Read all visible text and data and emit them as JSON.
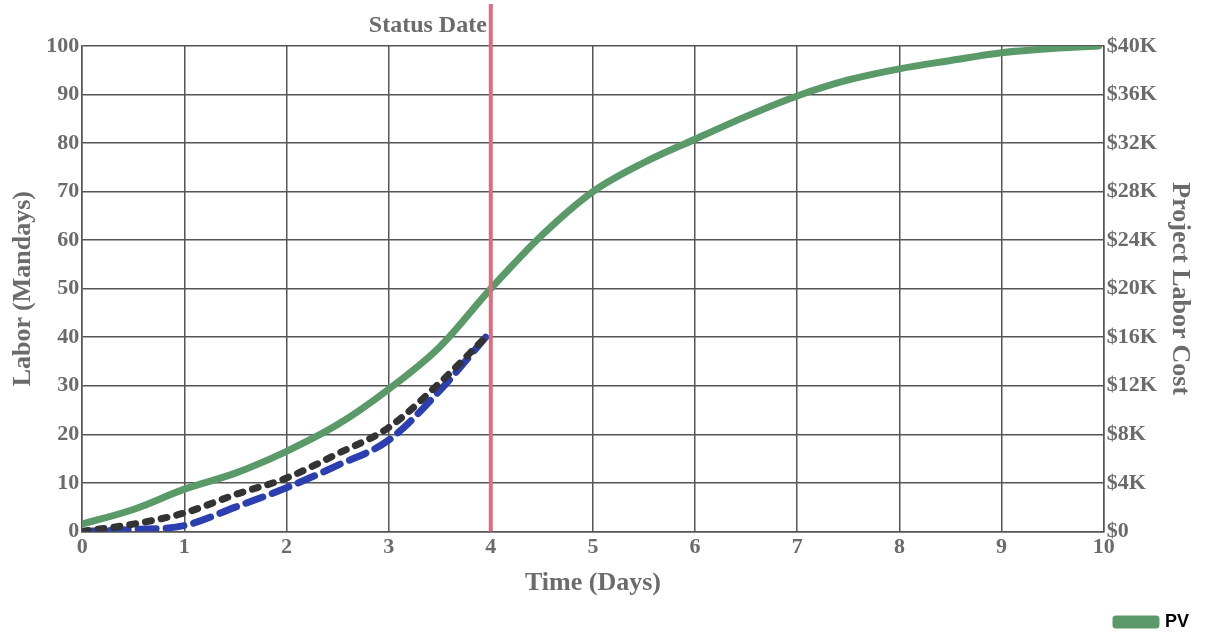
{
  "chart_data": {
    "type": "line",
    "xlabel": "Time (Days)",
    "ylabel": "Labor (Mandays)",
    "y2label": "Project Labor Cost",
    "xlim": [
      0,
      10
    ],
    "xticks": [
      0,
      1,
      2,
      3,
      4,
      5,
      6,
      7,
      8,
      9,
      10
    ],
    "ylim": [
      0,
      100
    ],
    "yticks": [
      0,
      10,
      20,
      30,
      40,
      50,
      60,
      70,
      80,
      90,
      100
    ],
    "y2lim": [
      0,
      40000
    ],
    "y2ticks": [
      {
        "value": 0,
        "label": "$0"
      },
      {
        "value": 4000,
        "label": "$4K"
      },
      {
        "value": 8000,
        "label": "$8K"
      },
      {
        "value": 12000,
        "label": "$12K"
      },
      {
        "value": 16000,
        "label": "$16K"
      },
      {
        "value": 20000,
        "label": "$20K"
      },
      {
        "value": 24000,
        "label": "$24K"
      },
      {
        "value": 28000,
        "label": "$28K"
      },
      {
        "value": 32000,
        "label": "$32K"
      },
      {
        "value": 36000,
        "label": "$36K"
      },
      {
        "value": 40000,
        "label": "$40K"
      }
    ],
    "grid": true,
    "legend": "bottom right",
    "marker": "none",
    "ref_lines": [
      {
        "axis": "x",
        "value": 4,
        "label": "Status Date",
        "color": "#d9707f"
      }
    ],
    "series": [
      {
        "name": "PV",
        "color": "#5a9a68",
        "line_style": "solid",
        "x": [
          0,
          0.5,
          1,
          1.5,
          2,
          2.5,
          3,
          3.5,
          4,
          4.5,
          5,
          5.5,
          6,
          6.5,
          7,
          7.5,
          8,
          8.5,
          9,
          9.5,
          9.95
        ],
        "values": [
          1.5,
          4.5,
          8.7,
          12,
          16.5,
          22,
          29.3,
          38,
          50,
          61,
          70,
          76,
          80.8,
          85.5,
          89.7,
          93,
          95.3,
          97,
          98.6,
          99.5,
          100
        ]
      },
      {
        "color": "#333333",
        "line_style": "dotted",
        "x": [
          0,
          0.5,
          1,
          1.5,
          2,
          2.5,
          3,
          3.5,
          3.95
        ],
        "values": [
          0,
          1.5,
          3.8,
          7.6,
          11,
          16,
          21.4,
          30.6,
          40
        ]
      },
      {
        "color": "#2b3fb0",
        "line_style": "dashed",
        "x": [
          0,
          0.5,
          1,
          1.5,
          2,
          2.5,
          3,
          3.5,
          3.95
        ],
        "values": [
          0,
          0.4,
          1.2,
          5,
          9,
          13.6,
          18.8,
          29,
          40
        ]
      }
    ]
  }
}
